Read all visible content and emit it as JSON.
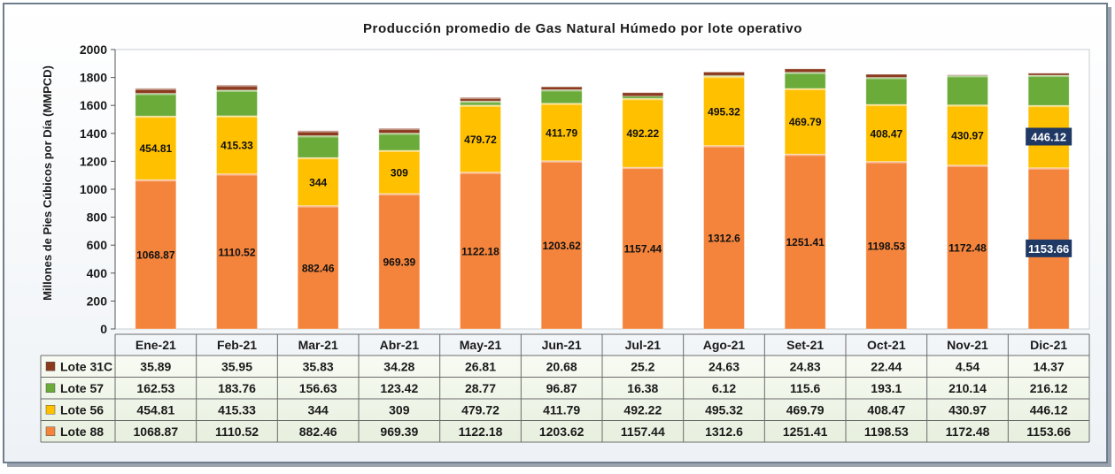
{
  "chart_data": {
    "type": "bar",
    "stacked": true,
    "title": "Producción promedio de Gas Natural Húmedo por lote operativo",
    "xlabel": "",
    "ylabel": "Millones de Pies Cúbicos por Día (MMPCD)",
    "ylim": [
      0,
      2000
    ],
    "yticks": [
      0,
      200,
      400,
      600,
      800,
      1000,
      1200,
      1400,
      1600,
      1800,
      2000
    ],
    "grid": false,
    "legend": "data table (left of rows)",
    "categories": [
      "Ene-21",
      "Feb-21",
      "Mar-21",
      "Abr-21",
      "May-21",
      "Jun-21",
      "Jul-21",
      "Ago-21",
      "Set-21",
      "Oct-21",
      "Nov-21",
      "Dic-21"
    ],
    "series": [
      {
        "name": "Lote 88",
        "color": "#F4843C",
        "labels": [
          "1068.87",
          "1110.52",
          "882.46",
          "969.39",
          "1122.18",
          "1203.62",
          "1157.44",
          "1312.6",
          "1251.41",
          "1198.53",
          "1172.48",
          "1153.66"
        ],
        "values": [
          1068.87,
          1110.52,
          882.46,
          969.39,
          1122.18,
          1203.62,
          1157.44,
          1312.6,
          1251.41,
          1198.53,
          1172.48,
          1153.66
        ]
      },
      {
        "name": "Lote 56",
        "color": "#FFC000",
        "labels": [
          "454.81",
          "415.33",
          "344",
          "309",
          "479.72",
          "411.79",
          "492.22",
          "495.32",
          "469.79",
          "408.47",
          "430.97",
          "446.12"
        ],
        "values": [
          454.81,
          415.33,
          344,
          309,
          479.72,
          411.79,
          492.22,
          495.32,
          469.79,
          408.47,
          430.97,
          446.12
        ]
      },
      {
        "name": "Lote 57",
        "color": "#6AAB3A",
        "labels": [
          "162.53",
          "183.76",
          "156.63",
          "123.42",
          "28.77",
          "96.87",
          "16.38",
          "6.12",
          "115.6",
          "193.1",
          "210.14",
          "216.12"
        ],
        "values": [
          162.53,
          183.76,
          156.63,
          123.42,
          28.77,
          96.87,
          16.38,
          6.12,
          115.6,
          193.1,
          210.14,
          216.12
        ]
      },
      {
        "name": "Lote 31C",
        "color": "#8B3A1E",
        "labels": [
          "35.89",
          "35.95",
          "35.83",
          "34.28",
          "26.81",
          "20.68",
          "25.2",
          "24.63",
          "24.83",
          "22.44",
          "4.54",
          "14.37"
        ],
        "values": [
          35.89,
          35.95,
          35.83,
          34.28,
          26.81,
          20.68,
          25.2,
          24.63,
          24.83,
          22.44,
          4.54,
          14.37
        ]
      }
    ],
    "bar_labels": {
      "Lote 88": [
        "1068.87",
        "1110.52",
        "882.46",
        "969.39",
        "1122.18",
        "1203.62",
        "1157.44",
        "1312.6",
        "1251.41",
        "1198.53",
        "1172.48",
        "1153.66"
      ],
      "Lote 56": [
        "454.81",
        "415.33",
        "344",
        "309",
        "479.72",
        "411.79",
        "492.22",
        "495.32",
        "469.79",
        "408.47",
        "430.97",
        "446.12"
      ]
    },
    "highlighted_category": "Dic-21",
    "table_row_order": [
      "Lote 31C",
      "Lote 57",
      "Lote 56",
      "Lote 88"
    ]
  }
}
